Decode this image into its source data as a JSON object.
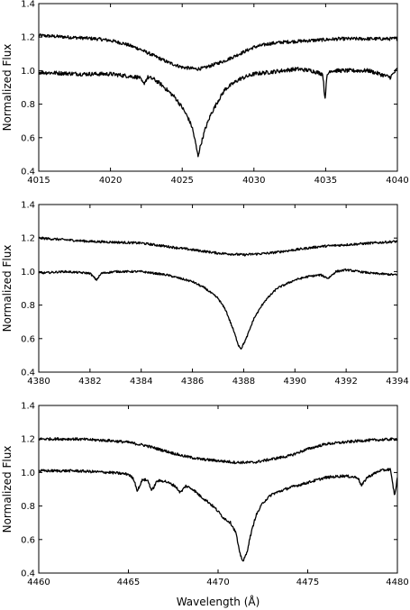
{
  "chart_data": [
    {
      "type": "line",
      "xlabel": "",
      "ylabel": "Normalized Flux",
      "xlim": [
        4015,
        4040
      ],
      "ylim": [
        0.4,
        1.4
      ],
      "xticks": [
        "4015",
        "4020",
        "4025",
        "4030",
        "4035",
        "4040"
      ],
      "yticks": [
        "0.4",
        "0.6",
        "0.8",
        "1.0",
        "1.2",
        "1.4"
      ],
      "series": [
        {
          "continuum": 1.2,
          "noise": 0.01,
          "color": "#000000",
          "x": [
            4015,
            4017,
            4019,
            4020,
            4021,
            4022,
            4023,
            4024,
            4025,
            4026,
            4026.5,
            4027,
            4028,
            4029,
            4030,
            4031,
            4032,
            4034,
            4036,
            4038,
            4040
          ],
          "y": [
            1.21,
            1.2,
            1.19,
            1.18,
            1.16,
            1.13,
            1.09,
            1.05,
            1.02,
            1.01,
            1.015,
            1.03,
            1.06,
            1.1,
            1.14,
            1.16,
            1.17,
            1.18,
            1.19,
            1.19,
            1.19
          ]
        },
        {
          "continuum": 1.0,
          "noise": 0.012,
          "color": "#000000",
          "x": [
            4015,
            4018,
            4020,
            4021,
            4022,
            4022.3,
            4022.6,
            4023,
            4023.5,
            4024,
            4024.5,
            4025,
            4025.4,
            4025.7,
            4025.9,
            4026.1,
            4026.3,
            4026.6,
            4027,
            4027.5,
            4028,
            4029,
            4030,
            4031,
            4032,
            4033,
            4034,
            4034.8,
            4034.95,
            4035.1,
            4035.3,
            4036,
            4038,
            4039.5,
            4040
          ],
          "y": [
            0.99,
            0.98,
            0.98,
            0.97,
            0.96,
            0.92,
            0.96,
            0.95,
            0.92,
            0.88,
            0.84,
            0.78,
            0.72,
            0.66,
            0.58,
            0.49,
            0.56,
            0.65,
            0.74,
            0.82,
            0.89,
            0.95,
            0.98,
            0.99,
            1.0,
            1.01,
            1.0,
            0.98,
            0.83,
            0.97,
            1.0,
            1.0,
            1.0,
            0.96,
            1.01
          ]
        }
      ]
    },
    {
      "type": "line",
      "xlabel": "",
      "ylabel": "Normalized Flux",
      "xlim": [
        4380,
        4394
      ],
      "ylim": [
        0.4,
        1.4
      ],
      "xticks": [
        "4380",
        "4382",
        "4384",
        "4386",
        "4388",
        "4390",
        "4392",
        "4394"
      ],
      "yticks": [
        "0.4",
        "0.6",
        "0.8",
        "1.0",
        "1.2",
        "1.4"
      ],
      "series": [
        {
          "continuum": 1.19,
          "noise": 0.007,
          "color": "#000000",
          "x": [
            4380,
            4382,
            4384,
            4385,
            4386,
            4387,
            4388,
            4389,
            4390,
            4391,
            4392,
            4393,
            4394
          ],
          "y": [
            1.2,
            1.18,
            1.17,
            1.15,
            1.13,
            1.11,
            1.1,
            1.11,
            1.13,
            1.15,
            1.16,
            1.17,
            1.18
          ]
        },
        {
          "continuum": 0.995,
          "noise": 0.006,
          "color": "#000000",
          "x": [
            4380,
            4381,
            4382,
            4382.25,
            4382.45,
            4383,
            4384,
            4385,
            4386,
            4386.5,
            4387,
            4387.3,
            4387.6,
            4387.8,
            4387.9,
            4388.1,
            4388.4,
            4388.8,
            4389.3,
            4390,
            4390.5,
            4391,
            4391.3,
            4391.6,
            4392,
            4393,
            4394
          ],
          "y": [
            0.99,
            1.0,
            0.99,
            0.95,
            0.99,
            1.0,
            1.0,
            0.98,
            0.94,
            0.9,
            0.84,
            0.77,
            0.65,
            0.56,
            0.54,
            0.6,
            0.72,
            0.82,
            0.9,
            0.95,
            0.97,
            0.98,
            0.96,
            1.0,
            1.01,
            0.99,
            0.98
          ]
        }
      ]
    },
    {
      "type": "line",
      "xlabel": "Wavelength (Å)",
      "ylabel": "Normalized Flux",
      "xlim": [
        4460,
        4480
      ],
      "ylim": [
        0.4,
        1.4
      ],
      "xticks": [
        "4460",
        "4465",
        "4470",
        "4475",
        "4480"
      ],
      "yticks": [
        "0.4",
        "0.6",
        "0.8",
        "1.0",
        "1.2",
        "1.4"
      ],
      "series": [
        {
          "continuum": 1.19,
          "noise": 0.008,
          "color": "#000000",
          "x": [
            4460,
            4462,
            4464,
            4465,
            4466,
            4467,
            4468,
            4469,
            4470,
            4471,
            4472,
            4473,
            4474,
            4475,
            4476,
            4478,
            4480
          ],
          "y": [
            1.2,
            1.2,
            1.19,
            1.18,
            1.16,
            1.13,
            1.1,
            1.08,
            1.07,
            1.06,
            1.06,
            1.08,
            1.1,
            1.14,
            1.17,
            1.19,
            1.2
          ]
        },
        {
          "continuum": 1.0,
          "noise": 0.008,
          "color": "#000000",
          "x": [
            4460,
            4462,
            4464,
            4465,
            4465.3,
            4465.5,
            4465.8,
            4466.1,
            4466.3,
            4466.6,
            4467,
            4467.6,
            4467.9,
            4468.2,
            4468.6,
            4469,
            4469.5,
            4469.9,
            4470.3,
            4470.7,
            4471,
            4471.2,
            4471.4,
            4471.6,
            4471.8,
            4472.1,
            4472.5,
            4473,
            4474,
            4475,
            4476,
            4477,
            4477.8,
            4478,
            4478.3,
            4479,
            4479.6,
            4479.85,
            4480
          ],
          "y": [
            1.01,
            1.01,
            1.0,
            0.99,
            0.96,
            0.89,
            0.96,
            0.95,
            0.89,
            0.95,
            0.95,
            0.92,
            0.88,
            0.92,
            0.9,
            0.86,
            0.82,
            0.78,
            0.73,
            0.7,
            0.64,
            0.52,
            0.47,
            0.52,
            0.62,
            0.74,
            0.82,
            0.87,
            0.91,
            0.94,
            0.97,
            0.98,
            0.97,
            0.92,
            0.97,
            1.01,
            1.02,
            0.86,
            0.97
          ]
        }
      ]
    }
  ]
}
